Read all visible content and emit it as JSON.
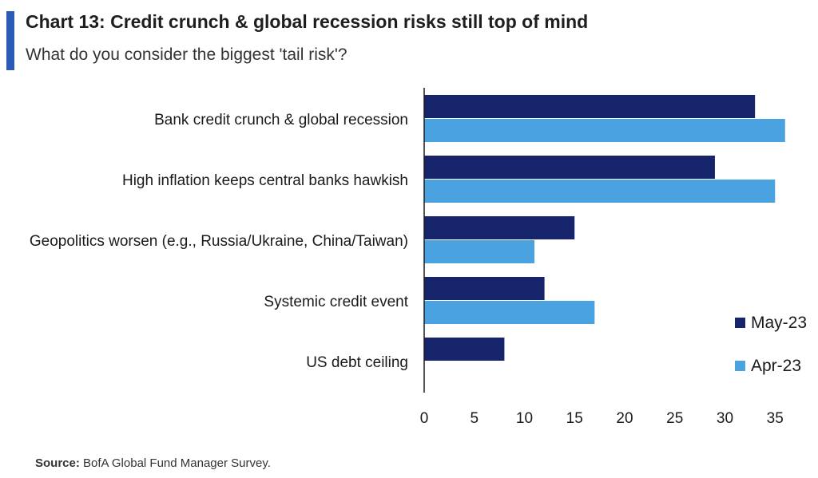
{
  "header": {
    "title": "Chart 13: Credit crunch & global recession risks still top of mind",
    "subtitle": "What do you consider the biggest 'tail risk'?",
    "accent_color": "#2a5bb7"
  },
  "source": {
    "label": "Source:",
    "text": "BofA Global Fund Manager Survey."
  },
  "chart_data": {
    "type": "bar",
    "orientation": "horizontal",
    "title": "",
    "xlabel": "",
    "ylabel": "",
    "categories": [
      "Bank credit crunch & global recession",
      "High inflation keeps central banks hawkish",
      "Geopolitics worsen (e.g., Russia/Ukraine, China/Taiwan)",
      "Systemic credit event",
      "US debt ceiling"
    ],
    "series": [
      {
        "name": "May-23",
        "color": "#16246b",
        "values": [
          33,
          29,
          15,
          12,
          8
        ]
      },
      {
        "name": "Apr-23",
        "color": "#4aa3e0",
        "values": [
          36,
          35,
          11,
          17,
          null
        ]
      }
    ],
    "xlim": [
      0,
      35
    ],
    "xticks": [
      "0",
      "5",
      "10",
      "15",
      "20",
      "25",
      "30",
      "35"
    ],
    "grid": false,
    "legend_position": "bottom-right"
  }
}
